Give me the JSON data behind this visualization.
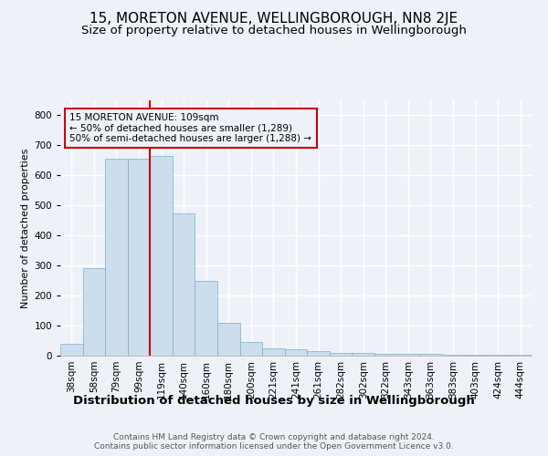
{
  "title": "15, MORETON AVENUE, WELLINGBOROUGH, NN8 2JE",
  "subtitle": "Size of property relative to detached houses in Wellingborough",
  "xlabel": "Distribution of detached houses by size in Wellingborough",
  "ylabel": "Number of detached properties",
  "footer": "Contains HM Land Registry data © Crown copyright and database right 2024.\nContains public sector information licensed under the Open Government Licence v3.0.",
  "bin_labels": [
    "38sqm",
    "58sqm",
    "79sqm",
    "99sqm",
    "119sqm",
    "140sqm",
    "160sqm",
    "180sqm",
    "200sqm",
    "221sqm",
    "241sqm",
    "261sqm",
    "282sqm",
    "302sqm",
    "322sqm",
    "343sqm",
    "363sqm",
    "383sqm",
    "403sqm",
    "424sqm",
    "444sqm"
  ],
  "bar_heights": [
    40,
    290,
    655,
    655,
    665,
    475,
    250,
    110,
    45,
    25,
    20,
    15,
    10,
    8,
    5,
    5,
    5,
    3,
    3,
    3,
    2
  ],
  "bar_color": "#ccdded",
  "bar_edge_color": "#7aaec8",
  "background_color": "#eef2f8",
  "grid_color": "#ffffff",
  "vline_color": "#cc0000",
  "annotation_text": "15 MORETON AVENUE: 109sqm\n← 50% of detached houses are smaller (1,289)\n50% of semi-detached houses are larger (1,288) →",
  "annotation_box_edge": "#cc0000",
  "ylim": [
    0,
    850
  ],
  "yticks": [
    0,
    100,
    200,
    300,
    400,
    500,
    600,
    700,
    800
  ],
  "title_fontsize": 11,
  "subtitle_fontsize": 9.5,
  "ylabel_fontsize": 8,
  "xlabel_fontsize": 9.5,
  "tick_fontsize": 7.5,
  "annotation_fontsize": 7.5,
  "footer_fontsize": 6.5
}
